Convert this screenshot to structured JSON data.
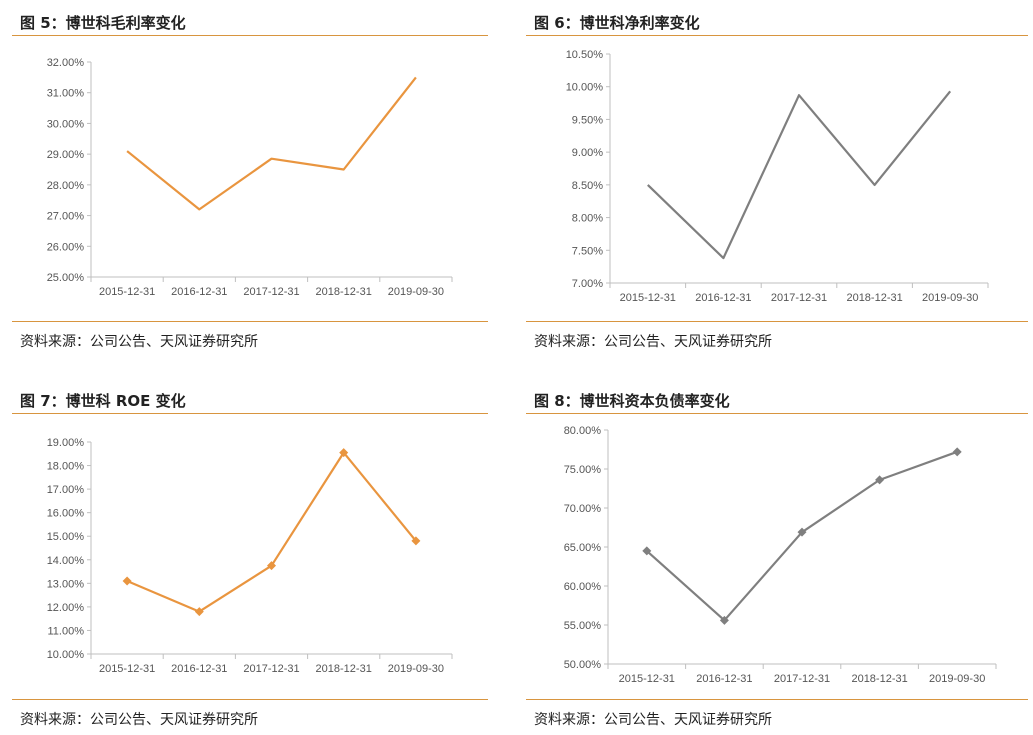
{
  "source_label": "资料来源：公司公告、天风证券研究所",
  "chart_data": [
    {
      "type": "line",
      "title": "图 5：博世科毛利率变化",
      "categories": [
        "2015-12-31",
        "2016-12-31",
        "2017-12-31",
        "2018-12-31",
        "2019-09-30"
      ],
      "series": [
        {
          "values": [
            29.1,
            27.2,
            28.85,
            28.5,
            31.5
          ],
          "color": "#e9953f",
          "marker": "none"
        }
      ],
      "ylim": [
        25,
        32
      ],
      "yticks": [
        25,
        26,
        27,
        28,
        29,
        30,
        31,
        32
      ],
      "ytick_labels": [
        "25.00%",
        "26.00%",
        "27.00%",
        "28.00%",
        "29.00%",
        "30.00%",
        "31.00%",
        "32.00%"
      ],
      "xlabel": "",
      "ylabel": "",
      "grid": false,
      "legend": "none"
    },
    {
      "type": "line",
      "title": "图 6：博世科净利率变化",
      "categories": [
        "2015-12-31",
        "2016-12-31",
        "2017-12-31",
        "2018-12-31",
        "2019-09-30"
      ],
      "series": [
        {
          "values": [
            8.5,
            7.38,
            9.87,
            8.5,
            9.93
          ],
          "color": "#7f7f7f",
          "marker": "none"
        }
      ],
      "ylim": [
        7,
        10.5
      ],
      "yticks": [
        7,
        7.5,
        8,
        8.5,
        9,
        9.5,
        10,
        10.5
      ],
      "ytick_labels": [
        "7.00%",
        "7.50%",
        "8.00%",
        "8.50%",
        "9.00%",
        "9.50%",
        "10.00%",
        "10.50%"
      ],
      "xlabel": "",
      "ylabel": "",
      "grid": false,
      "legend": "none"
    },
    {
      "type": "line",
      "title": "图 7：博世科 ROE 变化",
      "categories": [
        "2015-12-31",
        "2016-12-31",
        "2017-12-31",
        "2018-12-31",
        "2019-09-30"
      ],
      "series": [
        {
          "values": [
            13.1,
            11.8,
            13.75,
            18.55,
            14.8
          ],
          "color": "#e9953f",
          "marker": "diamond"
        }
      ],
      "ylim": [
        10,
        19
      ],
      "yticks": [
        10,
        11,
        12,
        13,
        14,
        15,
        16,
        17,
        18,
        19
      ],
      "ytick_labels": [
        "10.00%",
        "11.00%",
        "12.00%",
        "13.00%",
        "14.00%",
        "15.00%",
        "16.00%",
        "17.00%",
        "18.00%",
        "19.00%"
      ],
      "xlabel": "",
      "ylabel": "",
      "grid": false,
      "legend": "none"
    },
    {
      "type": "line",
      "title": "图 8：博世科资本负债率变化",
      "categories": [
        "2015-12-31",
        "2016-12-31",
        "2017-12-31",
        "2018-12-31",
        "2019-09-30"
      ],
      "series": [
        {
          "values": [
            64.5,
            55.6,
            66.9,
            73.6,
            77.2
          ],
          "color": "#7f7f7f",
          "marker": "diamond"
        }
      ],
      "ylim": [
        50,
        80
      ],
      "yticks": [
        50,
        55,
        60,
        65,
        70,
        75,
        80
      ],
      "ytick_labels": [
        "50.00%",
        "55.00%",
        "60.00%",
        "65.00%",
        "70.00%",
        "75.00%",
        "80.00%"
      ],
      "xlabel": "",
      "ylabel": "",
      "grid": false,
      "legend": "none"
    }
  ]
}
